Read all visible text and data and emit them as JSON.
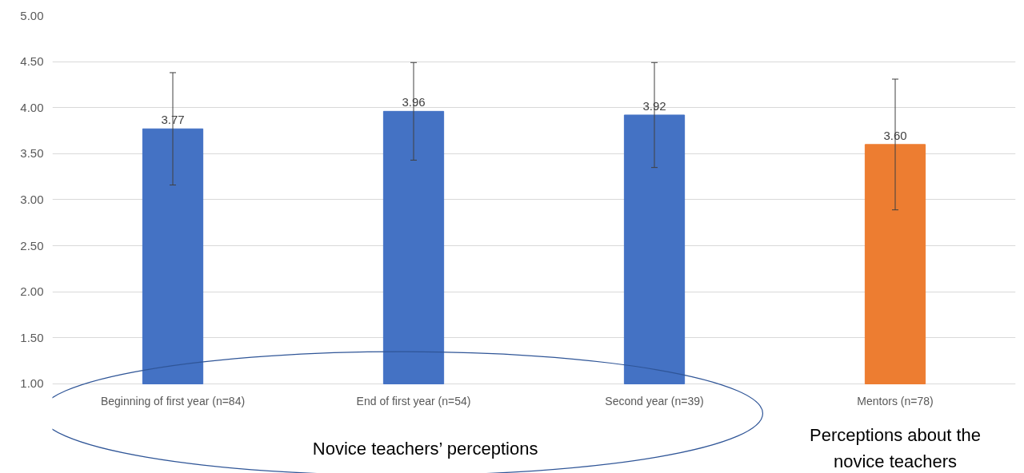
{
  "chart_data": {
    "type": "bar",
    "categories": [
      "Beginning of first year (n=84)",
      "End of first year (n=54)",
      "Second year (n=39)",
      "Mentors (n=78)"
    ],
    "values": [
      3.77,
      3.96,
      3.92,
      3.6
    ],
    "value_labels": [
      "3.77",
      "3.96",
      "3.92",
      "3.60"
    ],
    "errors": [
      0.61,
      0.53,
      0.57,
      0.71
    ],
    "colors": [
      "#4472c4",
      "#4472c4",
      "#4472c4",
      "#ed7d31"
    ],
    "ylim": [
      1.0,
      5.0
    ],
    "yticks": [
      {
        "value": 1.0,
        "label": "1.00"
      },
      {
        "value": 1.5,
        "label": "1.50"
      },
      {
        "value": 2.0,
        "label": "2.00"
      },
      {
        "value": 2.5,
        "label": "2.50"
      },
      {
        "value": 3.0,
        "label": "3.00"
      },
      {
        "value": 3.5,
        "label": "3.50"
      },
      {
        "value": 4.0,
        "label": "4.00"
      },
      {
        "value": 4.5,
        "label": "4.50"
      },
      {
        "value": 5.0,
        "label": "5.00"
      }
    ],
    "grid": "y",
    "annotations": [
      "Novice teachers’ perceptions",
      "Perceptions about the novice teachers"
    ]
  }
}
